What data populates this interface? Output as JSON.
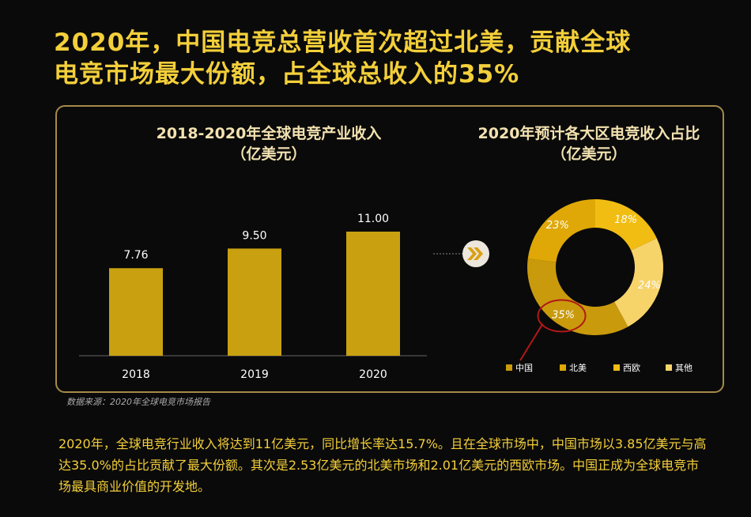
{
  "title": {
    "line1": "2020年，中国电竞总营收首次超过北美，贡献全球",
    "line2": "电竞市场最大份额，占全球总收入的35%"
  },
  "chart_data": [
    {
      "type": "bar",
      "title": "2018-2020年全球电竞产业收入",
      "subtitle": "（亿美元）",
      "categories": [
        "2018",
        "2019",
        "2020"
      ],
      "values": [
        7.76,
        9.5,
        11.0
      ],
      "labels": [
        "7.76",
        "9.50",
        "11.00"
      ],
      "color": "#c9a010"
    },
    {
      "type": "pie",
      "title": "2020年预计各大区电竞收入占比",
      "subtitle": "（亿美元）",
      "categories": [
        "中国",
        "北美",
        "西欧",
        "其他"
      ],
      "values": [
        35,
        23,
        18,
        24
      ],
      "labels": [
        "35%",
        "23%",
        "18%",
        "24%"
      ],
      "colors": [
        "#c99a0c",
        "#dfa806",
        "#f2bd12",
        "#f6d46a"
      ],
      "highlight": "中国"
    }
  ],
  "source": "数据来源：2020年全球电竞市场报告",
  "body": "2020年，全球电竞行业收入将达到11亿美元，同比增长率达15.7%。且在全球市场中，中国市场以3.85亿美元与高达35.0%的占比贡献了最大份额。其次是2.53亿美元的北美市场和2.01亿美元的西欧市场。中国正成为全球电竞市场最具商业价值的开发地。",
  "icons": {
    "arrow": "double-chevron-right-icon"
  }
}
